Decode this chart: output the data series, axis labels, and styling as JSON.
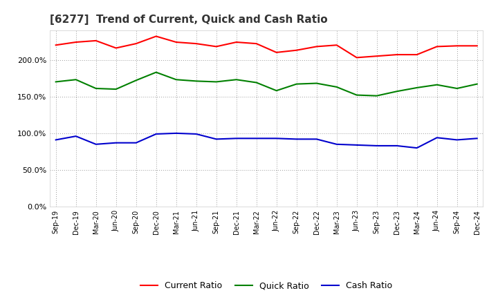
{
  "title": "[6277]  Trend of Current, Quick and Cash Ratio",
  "x_labels": [
    "Sep-19",
    "Dec-19",
    "Mar-20",
    "Jun-20",
    "Sep-20",
    "Dec-20",
    "Mar-21",
    "Jun-21",
    "Sep-21",
    "Dec-21",
    "Mar-22",
    "Jun-22",
    "Sep-22",
    "Dec-22",
    "Mar-23",
    "Jun-23",
    "Sep-23",
    "Dec-23",
    "Mar-24",
    "Jun-24",
    "Sep-24",
    "Dec-24"
  ],
  "current_ratio": [
    220,
    224,
    226,
    216,
    222,
    232,
    224,
    222,
    218,
    224,
    222,
    210,
    213,
    218,
    220,
    203,
    205,
    207,
    207,
    218,
    219,
    219
  ],
  "quick_ratio": [
    170,
    173,
    161,
    160,
    172,
    183,
    173,
    171,
    170,
    173,
    169,
    158,
    167,
    168,
    163,
    152,
    151,
    157,
    162,
    166,
    161,
    167
  ],
  "cash_ratio": [
    91,
    96,
    85,
    87,
    87,
    99,
    100,
    99,
    92,
    93,
    93,
    93,
    92,
    92,
    85,
    84,
    83,
    83,
    80,
    94,
    91,
    93
  ],
  "current_color": "#ff0000",
  "quick_color": "#008000",
  "cash_color": "#0000cd",
  "ylim": [
    0,
    240
  ],
  "yticks": [
    0,
    50,
    100,
    150,
    200
  ],
  "background_color": "#ffffff",
  "grid_color": "#999999",
  "title_fontsize": 11,
  "tick_fontsize": 7,
  "ytick_fontsize": 8,
  "legend_labels": [
    "Current Ratio",
    "Quick Ratio",
    "Cash Ratio"
  ],
  "legend_fontsize": 9,
  "line_width": 1.5
}
